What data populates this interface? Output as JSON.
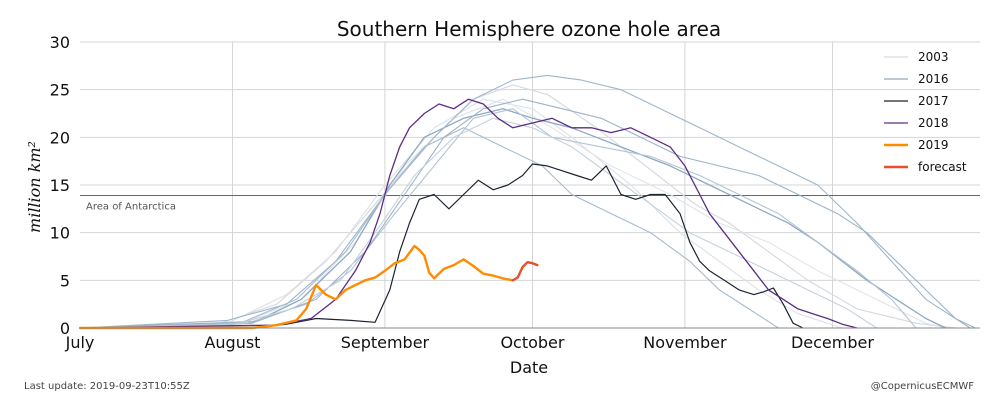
{
  "chart_data": {
    "type": "line",
    "title": "Southern Hemisphere ozone hole area",
    "xlabel": "Date",
    "ylabel": "million km²",
    "x_unit": "day of season (Jul 1 = 0)",
    "xlim": [
      0,
      183
    ],
    "ylim": [
      0,
      30
    ],
    "y_ticks": [
      0,
      5,
      10,
      15,
      20,
      25,
      30
    ],
    "x_ticks": [
      {
        "label": "July",
        "day": 0
      },
      {
        "label": "August",
        "day": 31
      },
      {
        "label": "September",
        "day": 62
      },
      {
        "label": "October",
        "day": 92
      },
      {
        "label": "November",
        "day": 123
      },
      {
        "label": "December",
        "day": 153
      }
    ],
    "grid": "both",
    "legend_position": "top-right",
    "reference_line": {
      "label": "Area of Antarctica",
      "y": 13.9
    },
    "series": [
      {
        "name": "2003",
        "color": "#d6dbe0",
        "width": 1.2,
        "in_legend": true,
        "points": [
          [
            0,
            0
          ],
          [
            28,
            0.4
          ],
          [
            40,
            2.5
          ],
          [
            50,
            7
          ],
          [
            60,
            13
          ],
          [
            70,
            19
          ],
          [
            80,
            24
          ],
          [
            88,
            25.5
          ],
          [
            95,
            24.5
          ],
          [
            105,
            21
          ],
          [
            115,
            17
          ],
          [
            125,
            13
          ],
          [
            132,
            11
          ],
          [
            140,
            8
          ],
          [
            148,
            5
          ],
          [
            158,
            2
          ],
          [
            170,
            0.5
          ],
          [
            178,
            0
          ]
        ]
      },
      {
        "name": "",
        "color": "#dde1e6",
        "width": 1.1,
        "in_legend": false,
        "points": [
          [
            0,
            0
          ],
          [
            30,
            0.5
          ],
          [
            42,
            3.5
          ],
          [
            52,
            8
          ],
          [
            62,
            15
          ],
          [
            72,
            21
          ],
          [
            82,
            24
          ],
          [
            92,
            23
          ],
          [
            100,
            20
          ],
          [
            112,
            15
          ],
          [
            122,
            10
          ],
          [
            130,
            7
          ],
          [
            138,
            4
          ],
          [
            146,
            1.5
          ],
          [
            155,
            0
          ]
        ]
      },
      {
        "name": "",
        "color": "#e0e4e9",
        "width": 1.1,
        "in_legend": false,
        "points": [
          [
            0,
            0
          ],
          [
            32,
            0.3
          ],
          [
            45,
            3
          ],
          [
            56,
            9
          ],
          [
            66,
            17
          ],
          [
            76,
            22
          ],
          [
            86,
            24
          ],
          [
            96,
            21
          ],
          [
            108,
            17
          ],
          [
            120,
            14
          ],
          [
            130,
            11
          ],
          [
            140,
            9
          ],
          [
            150,
            6
          ],
          [
            162,
            3
          ],
          [
            172,
            0.5
          ],
          [
            176,
            0
          ]
        ]
      },
      {
        "name": "2016",
        "color": "#8fa9c2",
        "width": 1.3,
        "in_legend": true,
        "points": [
          [
            0,
            0
          ],
          [
            35,
            0.5
          ],
          [
            45,
            3
          ],
          [
            55,
            8
          ],
          [
            63,
            15
          ],
          [
            70,
            20
          ],
          [
            78,
            22
          ],
          [
            86,
            23
          ],
          [
            92,
            22
          ],
          [
            100,
            21
          ],
          [
            110,
            19
          ],
          [
            120,
            17
          ],
          [
            128,
            15
          ],
          [
            136,
            13
          ],
          [
            144,
            11
          ],
          [
            150,
            9
          ],
          [
            155,
            7
          ],
          [
            160,
            5
          ],
          [
            166,
            3
          ],
          [
            172,
            1
          ],
          [
            176,
            0
          ]
        ]
      },
      {
        "name": "",
        "color": "#9fb6cc",
        "width": 1.1,
        "in_legend": false,
        "points": [
          [
            0,
            0
          ],
          [
            30,
            0.8
          ],
          [
            42,
            2.5
          ],
          [
            52,
            7
          ],
          [
            62,
            14
          ],
          [
            72,
            20
          ],
          [
            80,
            24
          ],
          [
            88,
            26
          ],
          [
            95,
            26.5
          ],
          [
            102,
            26
          ],
          [
            110,
            25
          ],
          [
            118,
            23
          ],
          [
            126,
            21
          ],
          [
            134,
            19
          ],
          [
            142,
            17
          ],
          [
            150,
            15
          ],
          [
            158,
            11
          ],
          [
            165,
            7
          ],
          [
            172,
            3
          ],
          [
            178,
            1
          ],
          [
            182,
            0
          ]
        ]
      },
      {
        "name": "",
        "color": "#a6bbcf",
        "width": 1.1,
        "in_legend": false,
        "points": [
          [
            0,
            0
          ],
          [
            33,
            0.6
          ],
          [
            44,
            3
          ],
          [
            54,
            8
          ],
          [
            62,
            14
          ],
          [
            70,
            19
          ],
          [
            78,
            21
          ],
          [
            86,
            19
          ],
          [
            94,
            17
          ],
          [
            100,
            14
          ],
          [
            108,
            12
          ],
          [
            116,
            10
          ],
          [
            124,
            7
          ],
          [
            130,
            4
          ],
          [
            136,
            2
          ],
          [
            142,
            0
          ]
        ]
      },
      {
        "name": "",
        "color": "#b3c4d5",
        "width": 1.1,
        "in_legend": false,
        "points": [
          [
            0,
            0
          ],
          [
            34,
            0.5
          ],
          [
            46,
            2.5
          ],
          [
            55,
            6
          ],
          [
            64,
            12
          ],
          [
            72,
            17
          ],
          [
            80,
            22
          ],
          [
            88,
            23
          ],
          [
            96,
            20
          ],
          [
            106,
            19
          ],
          [
            116,
            18
          ],
          [
            126,
            16
          ],
          [
            134,
            14
          ],
          [
            142,
            12
          ],
          [
            150,
            9
          ],
          [
            158,
            6
          ],
          [
            165,
            3
          ],
          [
            170,
            0
          ]
        ]
      },
      {
        "name": "",
        "color": "#9cb3c8",
        "width": 1.1,
        "in_legend": false,
        "points": [
          [
            0,
            0
          ],
          [
            36,
            0.7
          ],
          [
            48,
            3
          ],
          [
            58,
            8
          ],
          [
            66,
            14
          ],
          [
            74,
            20
          ],
          [
            82,
            23
          ],
          [
            90,
            24
          ],
          [
            98,
            23
          ],
          [
            106,
            22
          ],
          [
            114,
            20
          ],
          [
            122,
            18
          ],
          [
            130,
            17
          ],
          [
            138,
            16
          ],
          [
            146,
            14
          ],
          [
            154,
            12
          ],
          [
            160,
            10
          ],
          [
            166,
            7
          ],
          [
            172,
            4
          ],
          [
            178,
            1
          ],
          [
            181,
            0
          ]
        ]
      },
      {
        "name": "",
        "color": "#c5d1dd",
        "width": 1.1,
        "in_legend": false,
        "points": [
          [
            0,
            0
          ],
          [
            31,
            0.3
          ],
          [
            43,
            2
          ],
          [
            53,
            5
          ],
          [
            60,
            10
          ],
          [
            68,
            16
          ],
          [
            76,
            20
          ],
          [
            84,
            22
          ],
          [
            92,
            21
          ],
          [
            100,
            19
          ],
          [
            108,
            16
          ],
          [
            116,
            13
          ],
          [
            124,
            10
          ],
          [
            132,
            8
          ],
          [
            140,
            6
          ],
          [
            148,
            4
          ],
          [
            156,
            2
          ],
          [
            162,
            0
          ]
        ]
      },
      {
        "name": "2017",
        "color": "#1c2431",
        "width": 1.2,
        "in_legend": true,
        "points": [
          [
            0,
            0
          ],
          [
            35,
            0
          ],
          [
            42,
            0.4
          ],
          [
            48,
            1
          ],
          [
            55,
            0.8
          ],
          [
            60,
            0.6
          ],
          [
            63,
            4
          ],
          [
            65,
            8
          ],
          [
            67,
            11
          ],
          [
            69,
            13.5
          ],
          [
            72,
            14
          ],
          [
            75,
            12.5
          ],
          [
            78,
            14
          ],
          [
            81,
            15.5
          ],
          [
            84,
            14.5
          ],
          [
            87,
            15
          ],
          [
            90,
            16
          ],
          [
            92,
            17.2
          ],
          [
            95,
            17
          ],
          [
            98,
            16.5
          ],
          [
            101,
            16
          ],
          [
            104,
            15.5
          ],
          [
            107,
            17
          ],
          [
            110,
            14
          ],
          [
            113,
            13.5
          ],
          [
            116,
            14
          ],
          [
            119,
            14
          ],
          [
            122,
            12
          ],
          [
            124,
            9
          ],
          [
            126,
            7
          ],
          [
            128,
            6
          ],
          [
            131,
            5
          ],
          [
            134,
            4
          ],
          [
            137,
            3.5
          ],
          [
            139,
            3.8
          ],
          [
            141,
            4.2
          ],
          [
            143,
            2.5
          ],
          [
            145,
            0.5
          ],
          [
            147,
            0
          ]
        ]
      },
      {
        "name": "2018",
        "color": "#5b2d85",
        "width": 1.3,
        "in_legend": true,
        "points": [
          [
            0,
            0
          ],
          [
            40,
            0.3
          ],
          [
            47,
            1
          ],
          [
            52,
            3
          ],
          [
            56,
            6
          ],
          [
            59,
            9
          ],
          [
            61,
            12
          ],
          [
            63,
            16
          ],
          [
            65,
            19
          ],
          [
            67,
            21
          ],
          [
            70,
            22.5
          ],
          [
            73,
            23.5
          ],
          [
            76,
            23
          ],
          [
            79,
            24
          ],
          [
            82,
            23.5
          ],
          [
            85,
            22
          ],
          [
            88,
            21
          ],
          [
            92,
            21.5
          ],
          [
            96,
            22
          ],
          [
            100,
            21
          ],
          [
            104,
            21
          ],
          [
            108,
            20.5
          ],
          [
            112,
            21
          ],
          [
            116,
            20
          ],
          [
            120,
            19
          ],
          [
            123,
            17
          ],
          [
            126,
            14
          ],
          [
            128,
            12
          ],
          [
            131,
            10
          ],
          [
            134,
            8
          ],
          [
            137,
            6
          ],
          [
            140,
            4
          ],
          [
            143,
            3
          ],
          [
            146,
            2
          ],
          [
            149,
            1.5
          ],
          [
            152,
            1
          ],
          [
            155,
            0.4
          ],
          [
            158,
            0
          ]
        ]
      },
      {
        "name": "2019",
        "color": "#ff8c00",
        "width": 2.4,
        "in_legend": true,
        "points": [
          [
            0,
            0
          ],
          [
            35,
            0
          ],
          [
            40,
            0.3
          ],
          [
            44,
            0.8
          ],
          [
            46,
            2
          ],
          [
            48,
            4.5
          ],
          [
            50,
            3.5
          ],
          [
            52,
            3
          ],
          [
            54,
            4
          ],
          [
            56,
            4.5
          ],
          [
            58,
            5
          ],
          [
            60,
            5.3
          ],
          [
            62,
            6
          ],
          [
            64,
            6.8
          ],
          [
            66,
            7.2
          ],
          [
            68,
            8.6
          ],
          [
            69,
            8.2
          ],
          [
            70,
            7.6
          ],
          [
            71,
            5.8
          ],
          [
            72,
            5.2
          ],
          [
            74,
            6.2
          ],
          [
            76,
            6.6
          ],
          [
            78,
            7.2
          ],
          [
            80,
            6.5
          ],
          [
            82,
            5.7
          ],
          [
            84,
            5.5
          ],
          [
            86,
            5.2
          ],
          [
            88,
            5
          ]
        ]
      },
      {
        "name": "forecast",
        "color": "#e8502a",
        "width": 2.4,
        "in_legend": true,
        "points": [
          [
            88,
            5
          ],
          [
            89,
            5.3
          ],
          [
            90,
            6.4
          ],
          [
            91,
            6.9
          ],
          [
            92,
            6.8
          ],
          [
            93,
            6.6
          ]
        ]
      }
    ]
  },
  "footer": {
    "last_update": "Last update: 2019-09-23T10:55Z",
    "credit": "@CopernicusECMWF"
  }
}
